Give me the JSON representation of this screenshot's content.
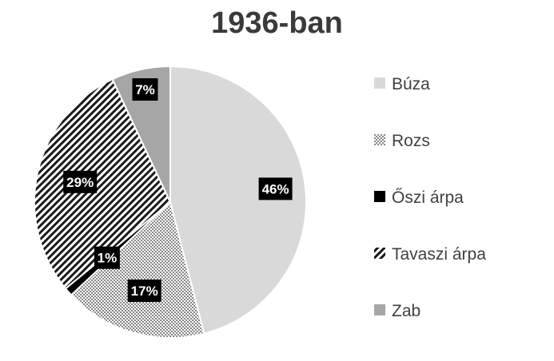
{
  "chart_data": {
    "type": "pie",
    "title": "1936-ban",
    "legend_position": "right",
    "slices": [
      {
        "label": "Búza",
        "value": 46,
        "display": "46%",
        "pattern": "solid-light",
        "color": "#d9d9d9"
      },
      {
        "label": "Rozs",
        "value": 17,
        "display": "17%",
        "pattern": "dots",
        "color": "#9a9a9a"
      },
      {
        "label": "Őszi árpa",
        "value": 1,
        "display": "1%",
        "pattern": "solid-black",
        "color": "#000000"
      },
      {
        "label": "Tavaszi árpa",
        "value": 29,
        "display": "29%",
        "pattern": "diagonal-hatch",
        "color": "#000000"
      },
      {
        "label": "Zab",
        "value": 7,
        "display": "7%",
        "pattern": "solid-grey",
        "color": "#a6a6a6"
      }
    ]
  }
}
